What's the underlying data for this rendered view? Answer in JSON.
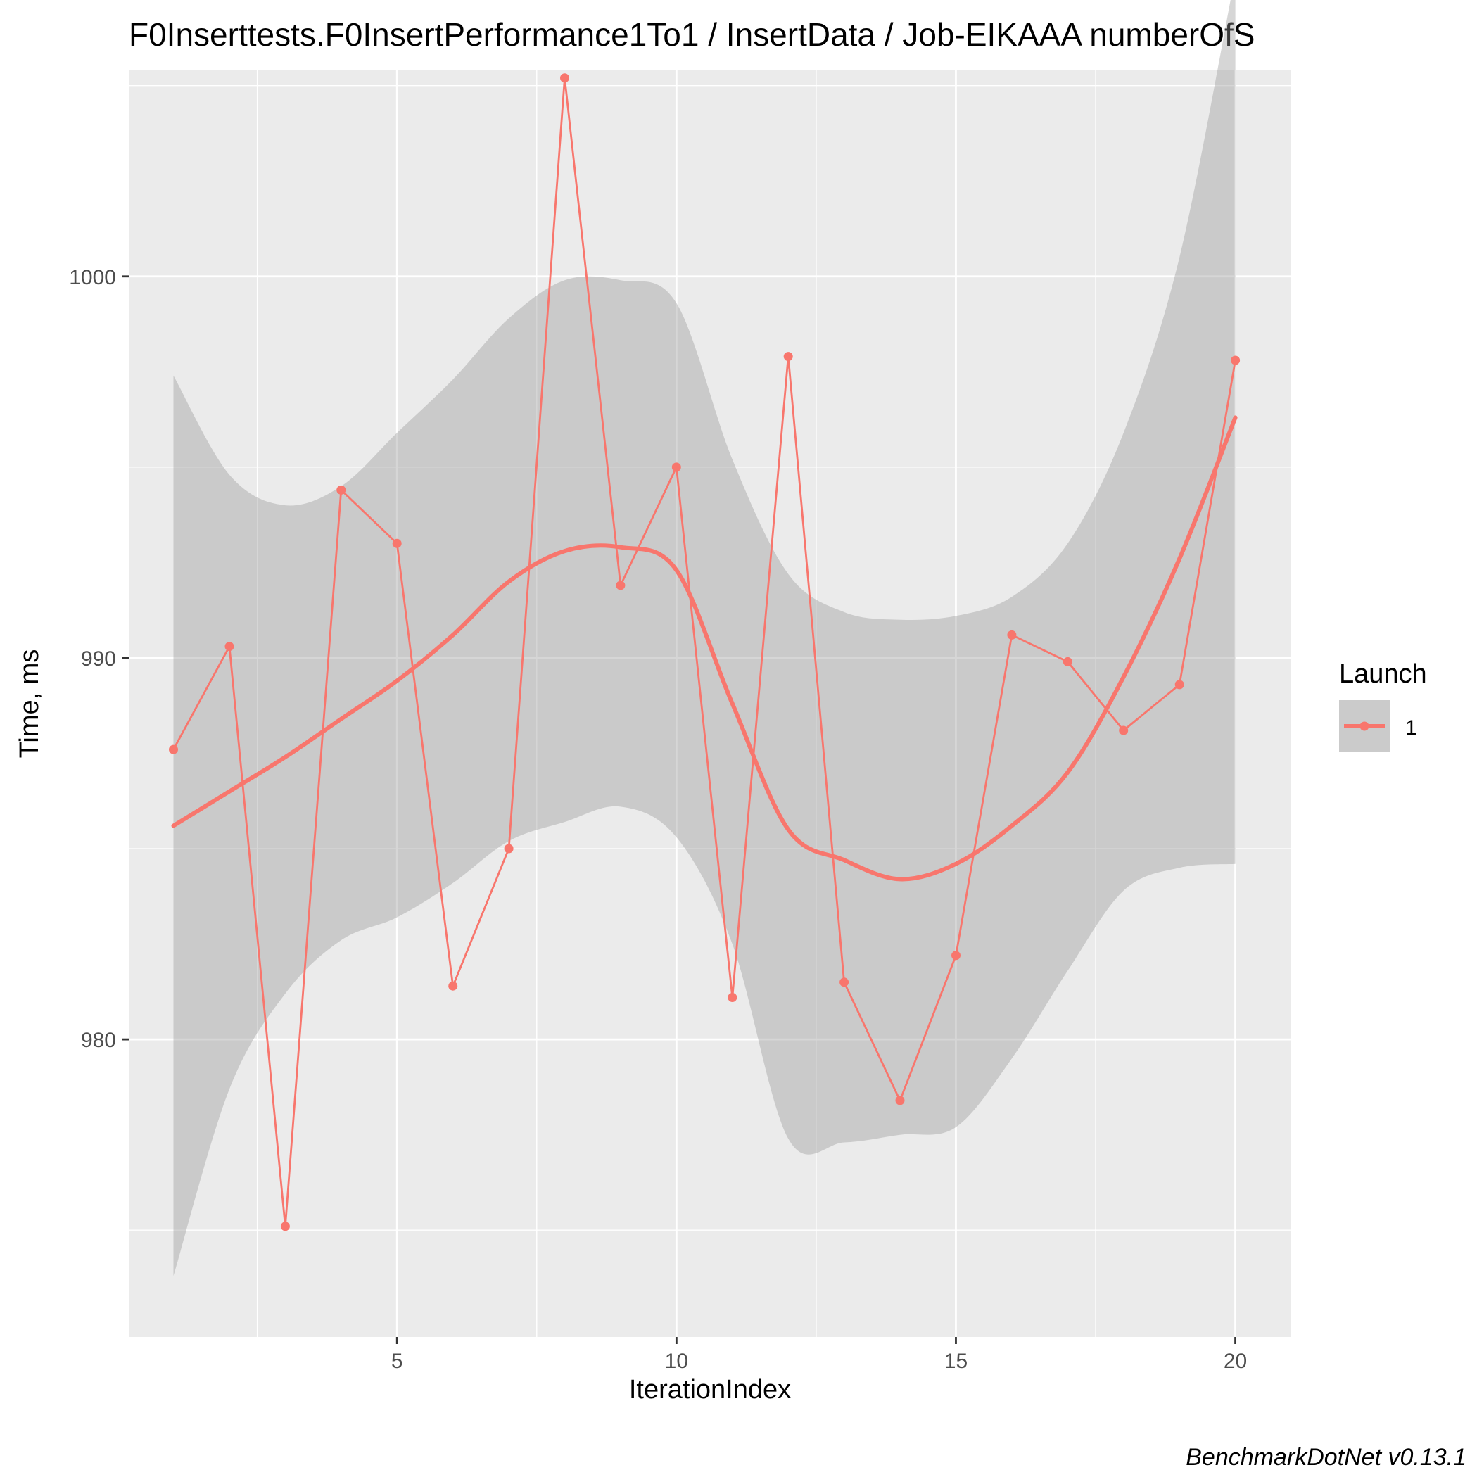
{
  "chart_data": {
    "type": "line",
    "title": "F0Inserttests.F0InsertPerformance1To1 / InsertData / Job-EIKAAA numberOfS",
    "xlabel": "IterationIndex",
    "ylabel": "Time, ms",
    "caption": "BenchmarkDotNet v0.13.1",
    "xlim": [
      0.2,
      21.0
    ],
    "ylim": [
      972.2,
      1005.4
    ],
    "x_ticks": [
      5,
      10,
      15,
      20
    ],
    "y_ticks": [
      980,
      990,
      1000
    ],
    "x_tick_labels": [
      "5",
      "10",
      "15",
      "20"
    ],
    "y_tick_labels": [
      "980",
      "990",
      "1000"
    ],
    "grid": true,
    "legend": {
      "title": "Launch",
      "position": "right",
      "entries": [
        "1"
      ]
    },
    "series": [
      {
        "name": "1",
        "color": "#f8766d",
        "x": [
          1,
          2,
          3,
          4,
          5,
          6,
          7,
          8,
          9,
          10,
          11,
          12,
          13,
          14,
          15,
          16,
          17,
          18,
          19,
          20
        ],
        "values": [
          987.6,
          990.3,
          975.1,
          994.4,
          993.0,
          981.4,
          985.0,
          1005.2,
          991.9,
          995.0,
          981.1,
          997.9,
          981.5,
          978.4,
          982.2,
          990.6,
          989.9,
          988.1,
          989.3,
          997.8
        ]
      }
    ],
    "smooth": {
      "color": "#f8766d",
      "band_color": "#999999",
      "x": [
        1,
        2,
        3,
        4,
        5,
        6,
        7,
        8,
        9,
        10,
        11,
        12,
        13,
        14,
        15,
        16,
        17,
        18,
        19,
        20
      ],
      "fit": [
        985.6,
        986.5,
        987.4,
        988.4,
        989.4,
        990.6,
        992.0,
        992.8,
        992.9,
        992.3,
        988.8,
        985.5,
        984.7,
        984.2,
        984.6,
        985.6,
        987.0,
        989.5,
        992.6,
        996.3
      ],
      "lower": [
        973.8,
        978.7,
        981.2,
        982.6,
        983.2,
        984.1,
        985.2,
        985.7,
        986.1,
        985.3,
        982.5,
        977.4,
        977.3,
        977.5,
        977.7,
        979.5,
        981.8,
        983.9,
        984.5,
        984.6
      ],
      "upper": [
        997.4,
        994.8,
        994.0,
        994.5,
        995.9,
        997.3,
        998.9,
        999.9,
        999.9,
        999.3,
        995.2,
        992.2,
        991.2,
        991.0,
        991.1,
        991.6,
        993.0,
        995.9,
        1000.5,
        1007.9
      ]
    }
  }
}
